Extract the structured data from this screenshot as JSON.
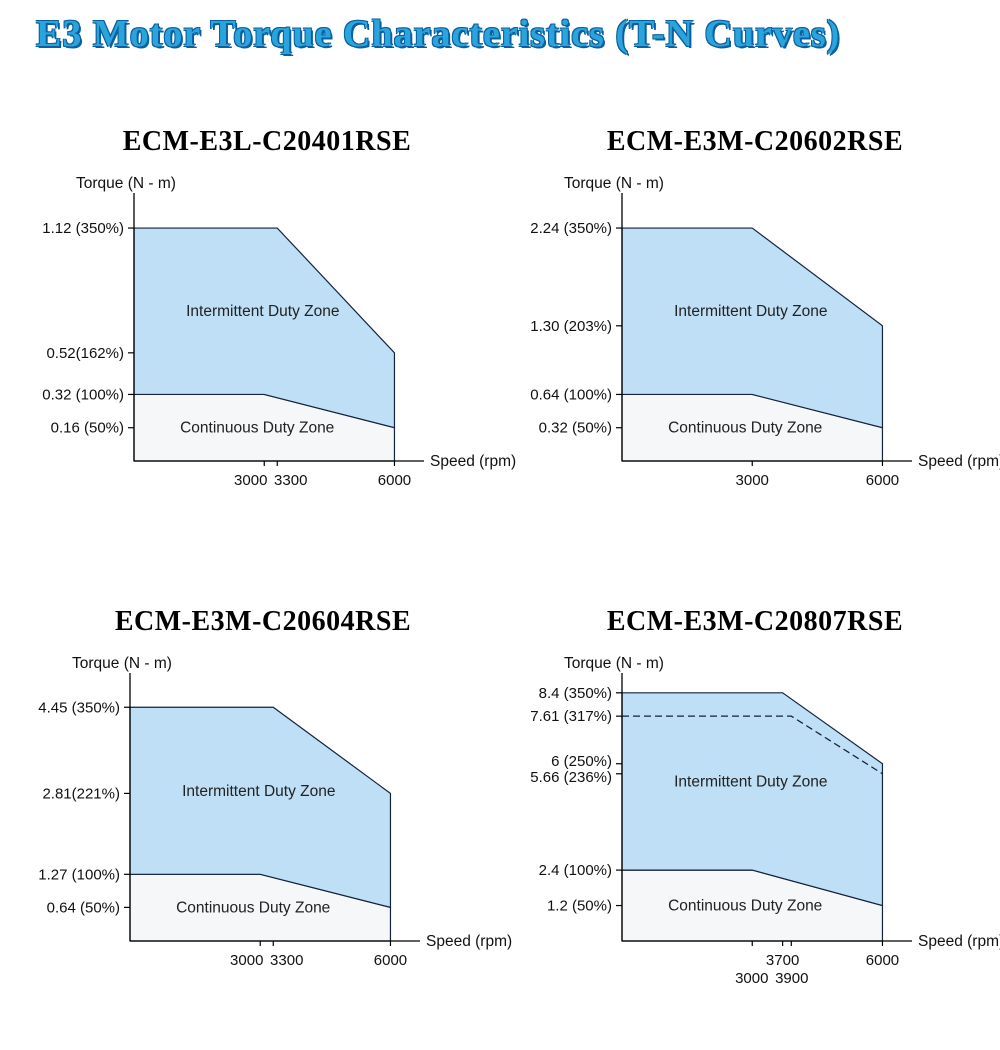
{
  "page_title": "E3 Motor Torque Characteristics (T-N Curves)",
  "colors": {
    "title_blue": "#2AA4DC",
    "title_outline_blue": "#0A5F9E",
    "intermittent_zone_fill": "#BEDFF6",
    "continuous_zone_fill": "#F5F7F8",
    "curve_line": "#15223B"
  },
  "chart_data": [
    {
      "type": "area",
      "title": "ECM-E3L-C20401RSE",
      "y_axis_label": "Torque (N - m)",
      "x_axis_label": "Speed (rpm)",
      "zone_labels": {
        "intermittent": "Intermittent Duty Zone",
        "continuous": "Continuous Duty Zone"
      },
      "y_ticks": [
        {
          "value": 1.12,
          "label": "1.12 (350%)"
        },
        {
          "value": 0.52,
          "label": "0.52(162%)"
        },
        {
          "value": 0.32,
          "label": "0.32 (100%)"
        },
        {
          "value": 0.16,
          "label": "0.16 (50%)"
        }
      ],
      "x_ticks": [
        {
          "value": 3000,
          "label": "3000",
          "row": 0
        },
        {
          "value": 3300,
          "label": "3300",
          "row": 0
        },
        {
          "value": 6000,
          "label": "6000",
          "row": 0
        }
      ],
      "xlim": [
        0,
        6450
      ],
      "y_max_scale": 1.25,
      "intermittent_boundary": [
        [
          0,
          1.12
        ],
        [
          3300,
          1.12
        ],
        [
          6000,
          0.52
        ]
      ],
      "continuous_boundary": [
        [
          0,
          0.32
        ],
        [
          3000,
          0.32
        ],
        [
          6000,
          0.16
        ]
      ]
    },
    {
      "type": "area",
      "title": "ECM-E3M-C20602RSE",
      "y_axis_label": "Torque (N - m)",
      "x_axis_label": "Speed (rpm)",
      "zone_labels": {
        "intermittent": "Intermittent Duty Zone",
        "continuous": "Continuous Duty Zone"
      },
      "y_ticks": [
        {
          "value": 2.24,
          "label": "2.24 (350%)"
        },
        {
          "value": 1.3,
          "label": "1.30 (203%)"
        },
        {
          "value": 0.64,
          "label": "0.64 (100%)"
        },
        {
          "value": 0.32,
          "label": "0.32 (50%)"
        }
      ],
      "x_ticks": [
        {
          "value": 3000,
          "label": "3000",
          "row": 0
        },
        {
          "value": 6000,
          "label": "6000",
          "row": 0
        }
      ],
      "xlim": [
        0,
        6450
      ],
      "y_max_scale": 2.5,
      "intermittent_boundary": [
        [
          0,
          2.24
        ],
        [
          3000,
          2.24
        ],
        [
          6000,
          1.3
        ]
      ],
      "continuous_boundary": [
        [
          0,
          0.64
        ],
        [
          3000,
          0.64
        ],
        [
          6000,
          0.32
        ]
      ]
    },
    {
      "type": "area",
      "title": "ECM-E3M-C20604RSE",
      "y_axis_label": "Torque (N - m)",
      "x_axis_label": "Speed (rpm)",
      "zone_labels": {
        "intermittent": "Intermittent Duty Zone",
        "continuous": "Continuous Duty Zone"
      },
      "y_ticks": [
        {
          "value": 4.45,
          "label": "4.45 (350%)"
        },
        {
          "value": 2.81,
          "label": "2.81(221%)"
        },
        {
          "value": 1.27,
          "label": "1.27 (100%)"
        },
        {
          "value": 0.64,
          "label": "0.64 (50%)"
        }
      ],
      "x_ticks": [
        {
          "value": 3000,
          "label": "3000",
          "row": 0
        },
        {
          "value": 3300,
          "label": "3300",
          "row": 0
        },
        {
          "value": 6000,
          "label": "6000",
          "row": 0
        }
      ],
      "xlim": [
        0,
        6450
      ],
      "y_max_scale": 4.95,
      "intermittent_boundary": [
        [
          0,
          4.45
        ],
        [
          3300,
          4.45
        ],
        [
          6000,
          2.81
        ]
      ],
      "continuous_boundary": [
        [
          0,
          1.27
        ],
        [
          3000,
          1.27
        ],
        [
          6000,
          0.64
        ]
      ]
    },
    {
      "type": "area",
      "title": "ECM-E3M-C20807RSE",
      "y_axis_label": "Torque (N - m)",
      "x_axis_label": "Speed (rpm)",
      "zone_labels": {
        "intermittent": "Intermittent Duty Zone",
        "continuous": "Continuous Duty Zone"
      },
      "y_ticks": [
        {
          "value": 8.4,
          "label": "8.4 (350%)"
        },
        {
          "value": 7.61,
          "label": "7.61 (317%)"
        },
        {
          "value": 6,
          "label": "6 (250%)"
        },
        {
          "value": 5.66,
          "label": "5.66 (236%)"
        },
        {
          "value": 2.4,
          "label": "2.4 (100%)"
        },
        {
          "value": 1.2,
          "label": "1.2 (50%)"
        }
      ],
      "x_ticks": [
        {
          "value": 3700,
          "label": "3700",
          "row": 0
        },
        {
          "value": 6000,
          "label": "6000",
          "row": 0
        },
        {
          "value": 3000,
          "label": "3000",
          "row": 1
        },
        {
          "value": 3900,
          "label": "3900",
          "row": 1
        }
      ],
      "xlim": [
        0,
        6450
      ],
      "y_max_scale": 8.8,
      "intermittent_boundary": [
        [
          0,
          8.4
        ],
        [
          3700,
          8.4
        ],
        [
          6000,
          6.0
        ]
      ],
      "continuous_boundary": [
        [
          0,
          2.4
        ],
        [
          3000,
          2.4
        ],
        [
          6000,
          1.2
        ]
      ],
      "dashed_line": [
        [
          0,
          7.61
        ],
        [
          3900,
          7.61
        ],
        [
          6000,
          5.66
        ]
      ]
    }
  ]
}
